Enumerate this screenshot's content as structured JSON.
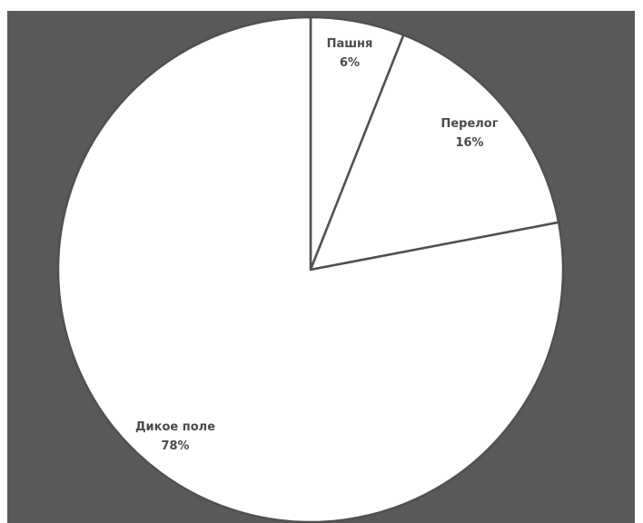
{
  "colors": {
    "background": "#595959",
    "slice_fill": "#ffffff",
    "slice_stroke": "#505050",
    "label_text": "#4a4a4a"
  },
  "chart_data": {
    "type": "pie",
    "start_angle_deg": 0,
    "direction": "clockwise",
    "legend": "none",
    "categories": [
      "Пашня",
      "Перелог",
      "Дикое поле"
    ],
    "values": [
      6,
      16,
      78
    ],
    "labels": [
      {
        "name": "Пашня",
        "value_text": "6%"
      },
      {
        "name": "Перелог",
        "value_text": "16%"
      },
      {
        "name": "Дикое поле",
        "value_text": "78%"
      }
    ]
  }
}
